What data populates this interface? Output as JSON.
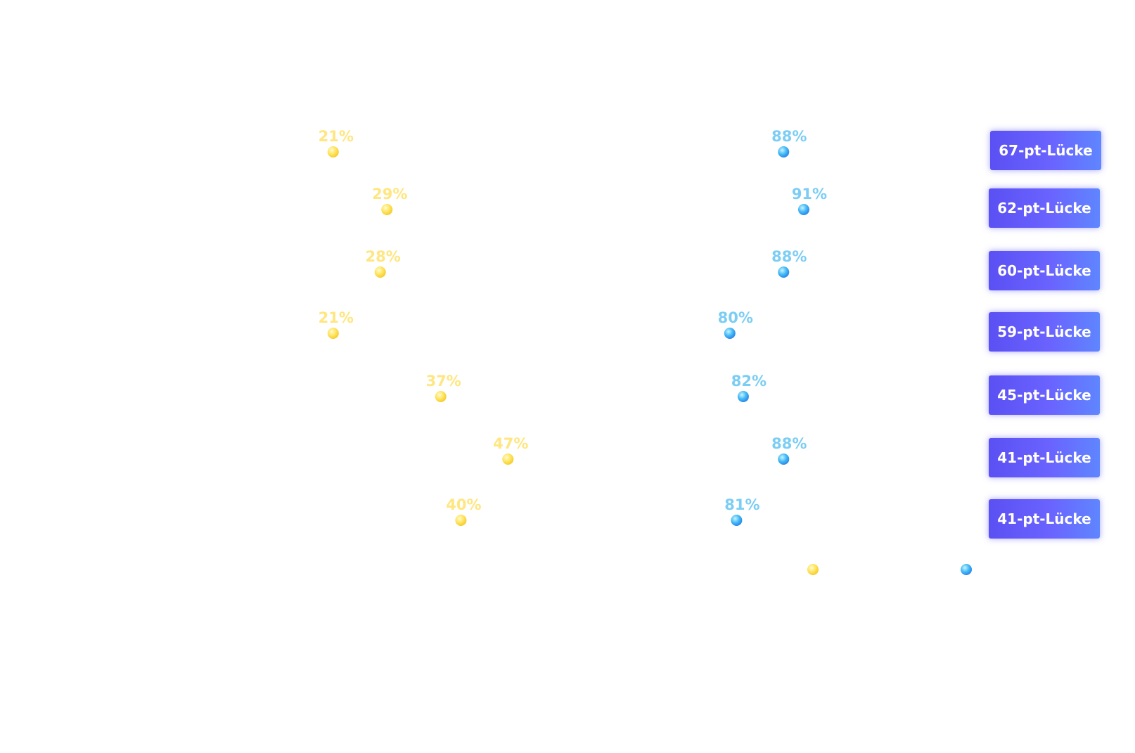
{
  "chart_data": {
    "type": "dumbbell",
    "title": "",
    "xlabel": "",
    "ylabel": "",
    "xlim": [
      0,
      100
    ],
    "grid": false,
    "legend": "bottom-right",
    "series": [
      {
        "key": "low",
        "name": "",
        "color": "#ffe35a"
      },
      {
        "key": "high",
        "name": "",
        "color": "#3aa8f3"
      }
    ],
    "rows": [
      {
        "low": 21,
        "high": 88,
        "low_label": "21%",
        "high_label": "88%",
        "gap_label": "67-pt-Lücke"
      },
      {
        "low": 29,
        "high": 91,
        "low_label": "29%",
        "high_label": "91%",
        "gap_label": "62-pt-Lücke"
      },
      {
        "low": 28,
        "high": 88,
        "low_label": "28%",
        "high_label": "88%",
        "gap_label": "60-pt-Lücke"
      },
      {
        "low": 21,
        "high": 80,
        "low_label": "21%",
        "high_label": "80%",
        "gap_label": "59-pt-Lücke"
      },
      {
        "low": 37,
        "high": 82,
        "low_label": "37%",
        "high_label": "82%",
        "gap_label": "45-pt-Lücke"
      },
      {
        "low": 47,
        "high": 88,
        "low_label": "47%",
        "high_label": "88%",
        "gap_label": "41-pt-Lücke"
      },
      {
        "low": 40,
        "high": 81,
        "low_label": "40%",
        "high_label": "81%",
        "gap_label": "41-pt-Lücke"
      }
    ]
  },
  "colors": {
    "low": "#ffe35a",
    "low_label": "#ffe680",
    "high": "#3aa8f3",
    "high_label": "#7ccdf4",
    "badge": "#5b55f5",
    "badge_text": "#ffffff"
  }
}
